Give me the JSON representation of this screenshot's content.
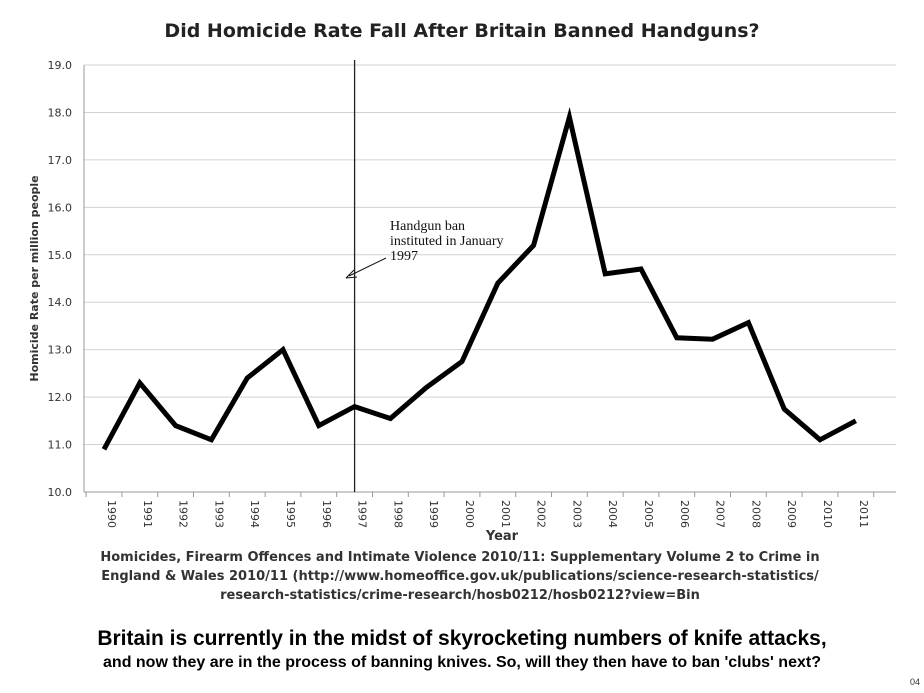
{
  "chart_data": {
    "type": "line",
    "title": "Did Homicide Rate Fall After Britain Banned Handguns?",
    "xlabel": "Year",
    "ylabel": "Homicide Rate per million people",
    "ylim": [
      10.0,
      19.0
    ],
    "yticks": [
      "10.0",
      "11.0",
      "12.0",
      "13.0",
      "14.0",
      "15.0",
      "16.0",
      "17.0",
      "18.0",
      "19.0"
    ],
    "categories": [
      "1990",
      "1991",
      "1992",
      "1993",
      "1994",
      "1995",
      "1996",
      "1997",
      "1998",
      "1999",
      "2000",
      "2001",
      "2002",
      "2003",
      "2004",
      "2005",
      "2006",
      "2007",
      "2008",
      "2009",
      "2010",
      "2011"
    ],
    "values": [
      10.9,
      12.3,
      11.4,
      11.1,
      12.4,
      13.0,
      11.4,
      11.8,
      11.55,
      12.2,
      12.75,
      14.4,
      15.2,
      17.9,
      14.6,
      14.7,
      13.25,
      13.22,
      13.57,
      11.75,
      11.1,
      11.5
    ],
    "grid": true,
    "event_marker": {
      "x": 1997.0,
      "annotation": [
        "Handgun ban",
        "instituted in January",
        "1997"
      ]
    },
    "line_color": "#000000"
  },
  "source_lines": [
    "Homicides, Firearm Offences and Intimate Violence 2010/11: Supplementary Volume 2 to Crime in",
    "England & Wales 2010/11 (http://www.homeoffice.gov.uk/publications/science-research-statistics/",
    "research-statistics/crime-research/hosb0212/hosb0212?view=Bin"
  ],
  "caption": {
    "line1": "Britain is currently in the midst of skyrocketing numbers of knife attacks,",
    "line2": "and now they are in the process of banning knives. So, will they then have to ban 'clubs' next?"
  },
  "page_number": "04"
}
